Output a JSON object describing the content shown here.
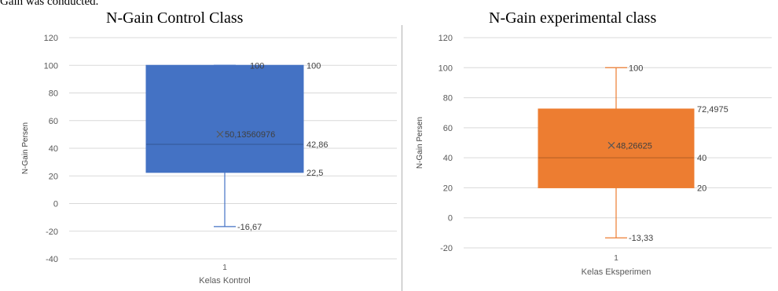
{
  "page": {
    "top_text": "Gain was conducted."
  },
  "chart_data": [
    {
      "type": "boxplot",
      "title": "N-Gain Control Class",
      "xlabel": "Kelas Kontrol",
      "ylabel": "N-Gain Persen",
      "category": "1",
      "ylim": [
        -40,
        120
      ],
      "yticks": [
        -40,
        -20,
        0,
        20,
        40,
        60,
        80,
        100,
        120
      ],
      "grid": true,
      "color": "#4472c4",
      "box": {
        "min": -16.67,
        "q1": 22.5,
        "median": 42.86,
        "q3": 100,
        "max": 100,
        "mean": 50.13560976
      },
      "labels": {
        "max": "100",
        "q3": "100",
        "mean": "50,13560976",
        "median": "42,86",
        "q1": "22,5",
        "min": "-16,67"
      }
    },
    {
      "type": "boxplot",
      "title": "N-Gain experimental class",
      "xlabel": "Kelas Eksperimen",
      "ylabel": "N-Gain Persen",
      "category": "1",
      "ylim": [
        -20,
        120
      ],
      "yticks": [
        -20,
        0,
        20,
        40,
        60,
        80,
        100,
        120
      ],
      "grid": true,
      "color": "#ed7d31",
      "box": {
        "min": -13.33,
        "q1": 20,
        "median": 40,
        "q3": 72.4975,
        "max": 100,
        "mean": 48.26625
      },
      "labels": {
        "max": "100",
        "q3": "72,4975",
        "mean": "48,26625",
        "median": "40",
        "q1": "20",
        "min": "-13,33"
      }
    }
  ]
}
